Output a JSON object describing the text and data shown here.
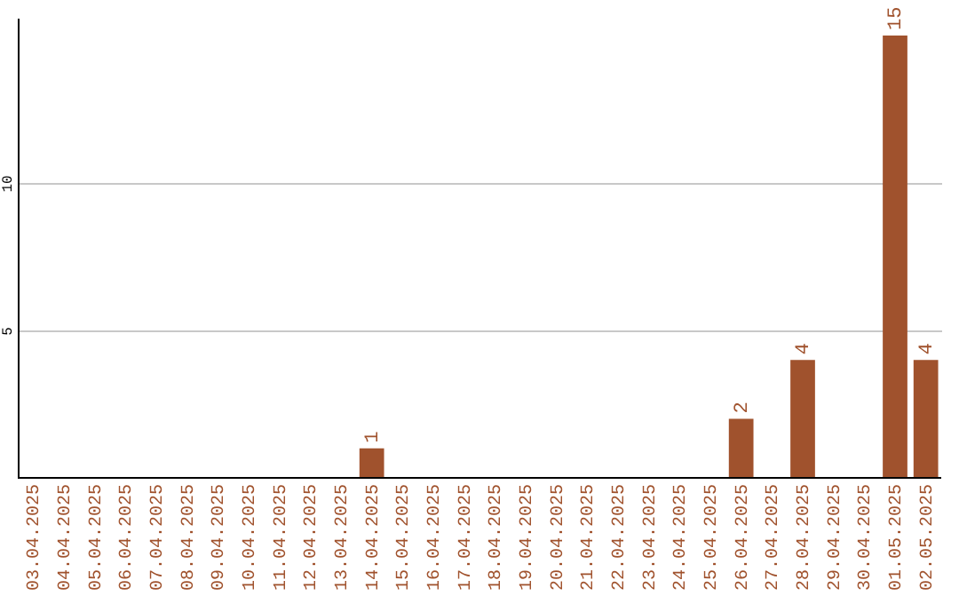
{
  "chart_data": {
    "type": "bar",
    "categories": [
      "03.04.2025",
      "04.04.2025",
      "05.04.2025",
      "06.04.2025",
      "07.04.2025",
      "08.04.2025",
      "09.04.2025",
      "10.04.2025",
      "11.04.2025",
      "12.04.2025",
      "13.04.2025",
      "14.04.2025",
      "15.04.2025",
      "16.04.2025",
      "17.04.2025",
      "18.04.2025",
      "19.04.2025",
      "20.04.2025",
      "21.04.2025",
      "22.04.2025",
      "23.04.2025",
      "24.04.2025",
      "25.04.2025",
      "26.04.2025",
      "27.04.2025",
      "28.04.2025",
      "29.04.2025",
      "30.04.2025",
      "01.05.2025",
      "02.05.2025"
    ],
    "values": [
      0,
      0,
      0,
      0,
      0,
      0,
      0,
      0,
      0,
      0,
      0,
      1,
      0,
      0,
      0,
      0,
      0,
      0,
      0,
      0,
      0,
      0,
      0,
      2,
      0,
      4,
      0,
      0,
      15,
      4
    ],
    "value_labels": [
      null,
      null,
      null,
      null,
      null,
      null,
      null,
      null,
      null,
      null,
      null,
      "1",
      null,
      null,
      null,
      null,
      null,
      null,
      null,
      null,
      null,
      null,
      null,
      "2",
      null,
      "4",
      null,
      null,
      "15",
      "4"
    ],
    "color": "#a0522d",
    "ylim": [
      0,
      15.6
    ],
    "yticks": [
      5,
      10
    ],
    "grid": "y"
  }
}
